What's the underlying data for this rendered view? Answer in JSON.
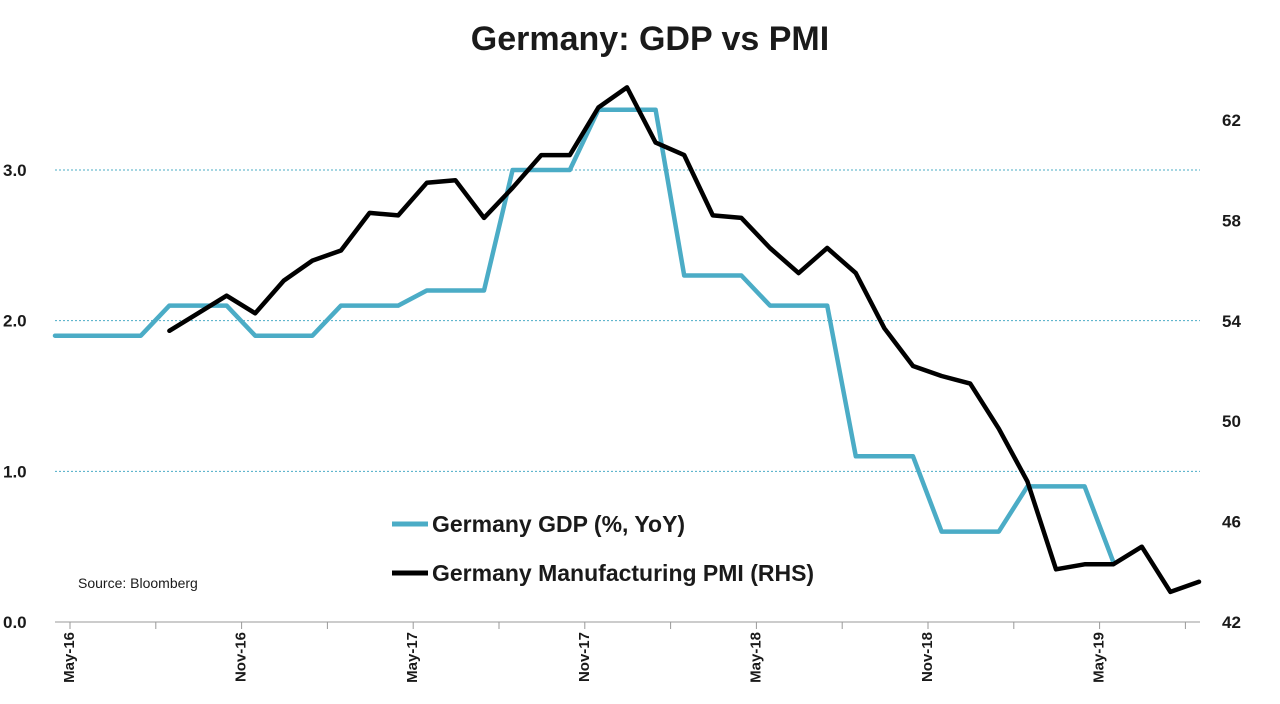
{
  "source_note": "Source: Bloomberg",
  "chart_data": {
    "type": "line",
    "title": "Germany: GDP vs PMI",
    "x": [
      "May-16",
      "Jun-16",
      "Jul-16",
      "Aug-16",
      "Sep-16",
      "Oct-16",
      "Nov-16",
      "Dec-16",
      "Jan-17",
      "Feb-17",
      "Mar-17",
      "Apr-17",
      "May-17",
      "Jun-17",
      "Jul-17",
      "Aug-17",
      "Sep-17",
      "Oct-17",
      "Nov-17",
      "Dec-17",
      "Jan-18",
      "Feb-18",
      "Mar-18",
      "Apr-18",
      "May-18",
      "Jun-18",
      "Jul-18",
      "Aug-18",
      "Sep-18",
      "Oct-18",
      "Nov-18",
      "Dec-18",
      "Jan-19",
      "Feb-19",
      "Mar-19",
      "Apr-19",
      "May-19",
      "Jun-19",
      "Jul-19",
      "Aug-19",
      "Sep-19"
    ],
    "x_tick_labels": [
      "May-16",
      "Nov-16",
      "May-17",
      "Nov-17",
      "May-18",
      "Nov-18",
      "May-19"
    ],
    "y_left": {
      "ylim": [
        0,
        3.0
      ],
      "ticks": [
        "0.0",
        "1.0",
        "2.0",
        "3.0"
      ]
    },
    "y_right": {
      "ylim": [
        42,
        62
      ],
      "ticks": [
        "42",
        "46",
        "50",
        "54",
        "58",
        "62"
      ]
    },
    "grid": true,
    "legend_position": "bottom-center",
    "series": [
      {
        "name": "Germany GDP (%, YoY)",
        "axis": "left",
        "color": "#4bacc6",
        "values": [
          1.9,
          1.9,
          1.9,
          1.9,
          2.1,
          2.1,
          2.1,
          1.9,
          1.9,
          1.9,
          2.1,
          2.1,
          2.1,
          2.2,
          2.2,
          2.2,
          3.0,
          3.0,
          3.0,
          3.4,
          3.4,
          3.4,
          2.3,
          2.3,
          2.3,
          2.1,
          2.1,
          2.1,
          1.1,
          1.1,
          1.1,
          0.6,
          0.6,
          0.6,
          0.9,
          0.9,
          0.9,
          0.4,
          null,
          null,
          null
        ]
      },
      {
        "name": "Germany Manufacturing PMI (RHS)",
        "axis": "right",
        "color": "#000000",
        "values": [
          null,
          null,
          null,
          null,
          53.6,
          54.3,
          55.0,
          54.3,
          55.6,
          56.4,
          56.8,
          58.3,
          58.2,
          59.5,
          59.6,
          58.1,
          59.3,
          60.6,
          60.6,
          62.5,
          63.3,
          61.1,
          60.6,
          58.2,
          58.1,
          56.9,
          55.9,
          56.9,
          55.9,
          53.7,
          52.2,
          51.8,
          51.5,
          49.7,
          47.6,
          44.1,
          44.3,
          44.3,
          45.0,
          43.2,
          43.6
        ]
      }
    ]
  }
}
